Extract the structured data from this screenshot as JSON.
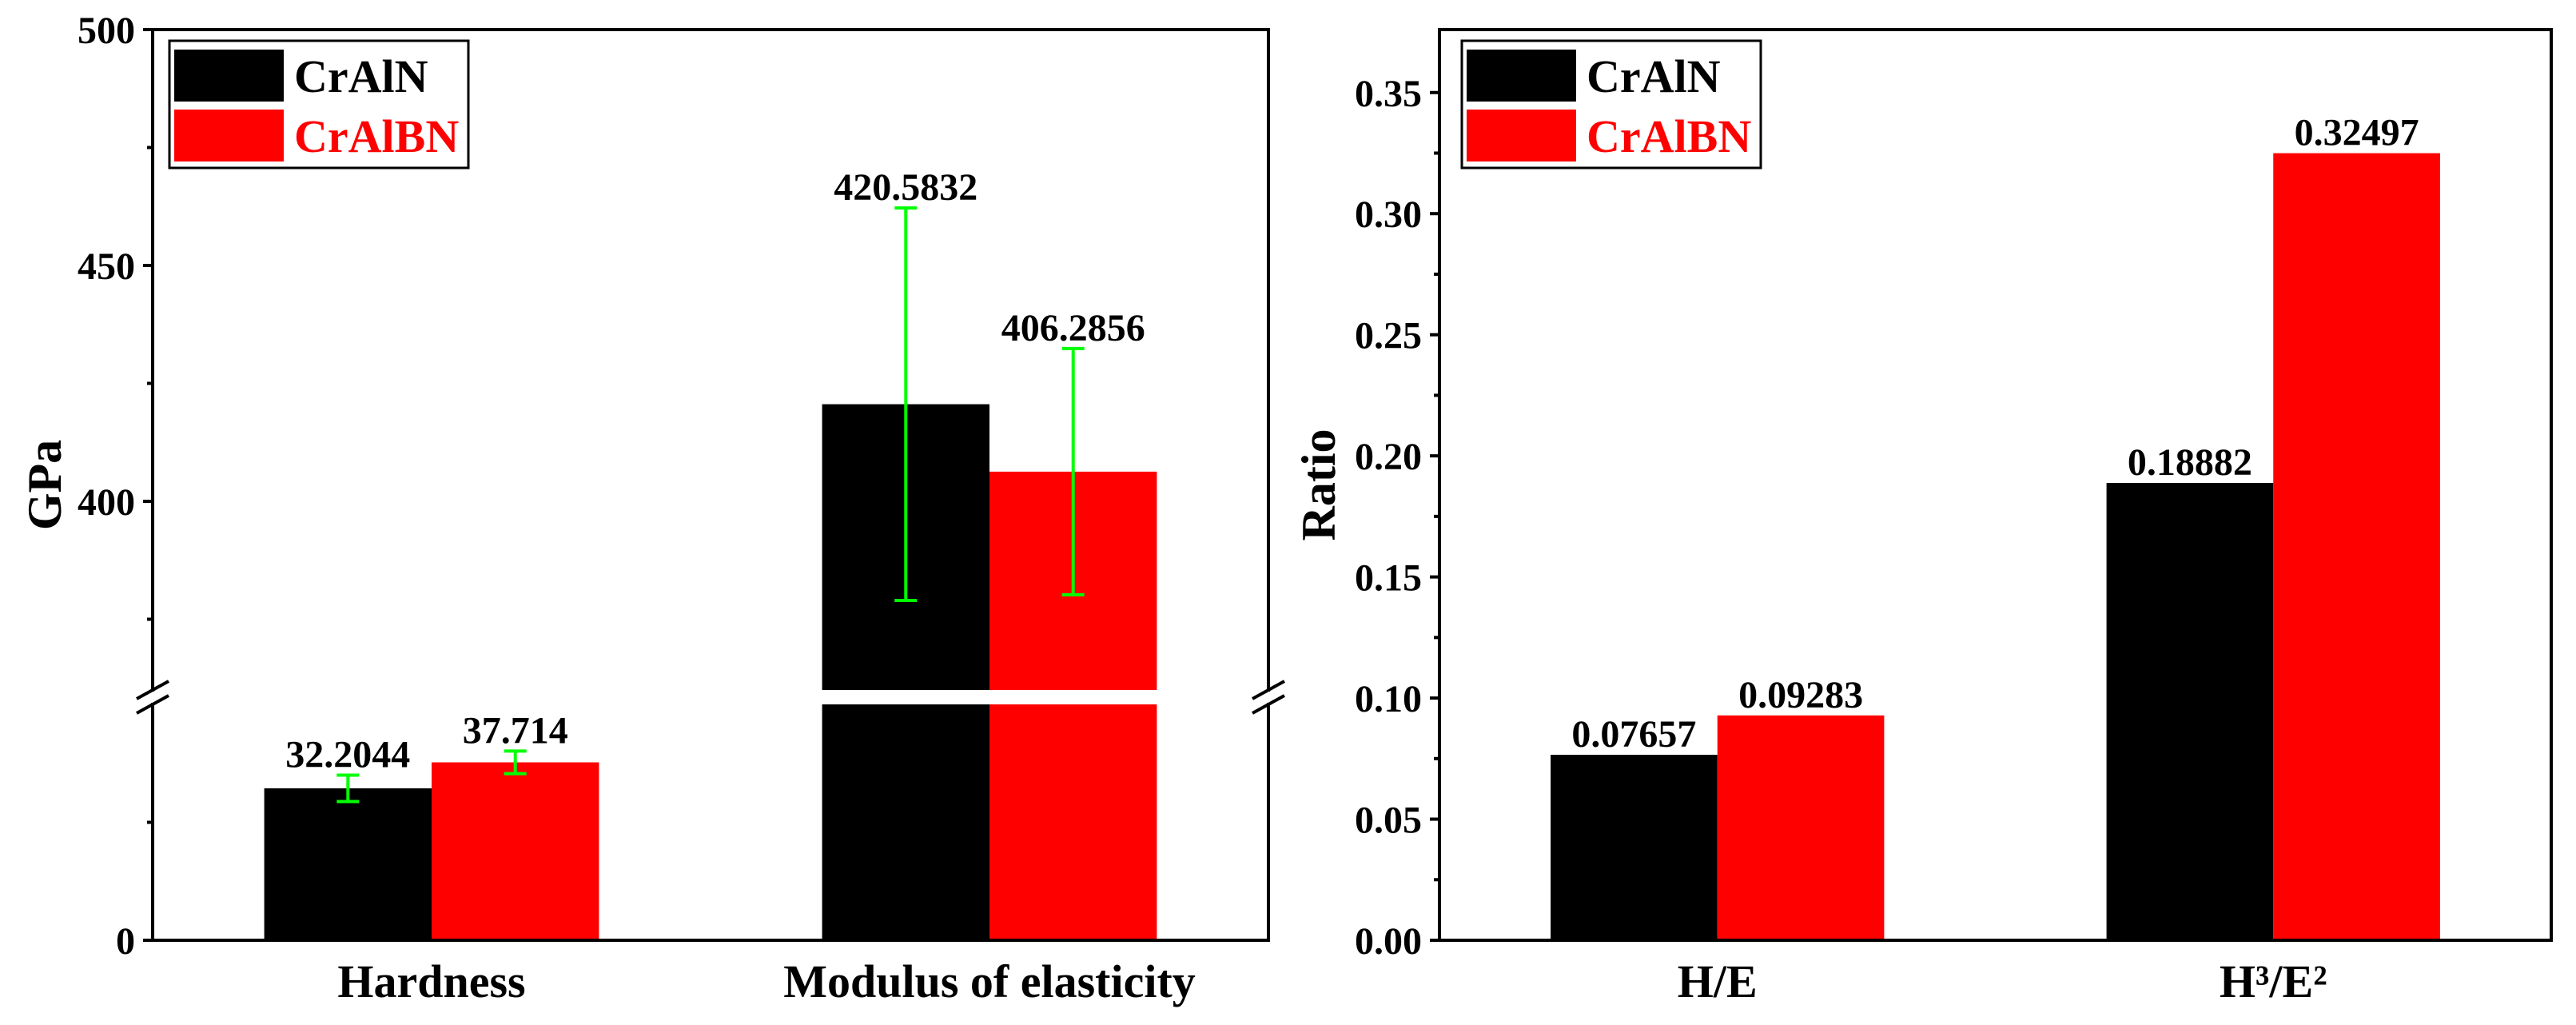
{
  "chart_data": [
    {
      "type": "bar",
      "categories": [
        "Hardness",
        "Modulus of elasticity"
      ],
      "series": [
        {
          "name": "CrAlN",
          "color": "#000000",
          "values": [
            32.2044,
            420.5832
          ],
          "errors": [
            2.8,
            41.6
          ],
          "labels": [
            "32.2044",
            "420.5832"
          ]
        },
        {
          "name": "CrAlBN",
          "color": "#ff0000",
          "values": [
            37.714,
            406.2856
          ],
          "errors": [
            2.4,
            26.1
          ],
          "labels": [
            "37.714",
            "406.2856"
          ]
        }
      ],
      "error_color": "#00ff00",
      "ylabel": "GPa",
      "y_segments": [
        [
          0,
          50
        ],
        [
          360,
          500
        ]
      ],
      "yticks": [
        0,
        400,
        450,
        500
      ],
      "yticklabels": [
        "0",
        "400",
        "450",
        "500"
      ],
      "yminor": [
        25,
        375,
        425,
        475
      ],
      "grid": false,
      "legend": "top-left"
    },
    {
      "type": "bar",
      "categories": [
        "H/E",
        "H³/E²"
      ],
      "series": [
        {
          "name": "CrAlN",
          "color": "#000000",
          "values": [
            0.07657,
            0.18882
          ],
          "labels": [
            "0.07657",
            "0.18882"
          ]
        },
        {
          "name": "CrAlBN",
          "color": "#ff0000",
          "values": [
            0.09283,
            0.32497
          ],
          "labels": [
            "0.09283",
            "0.32497"
          ]
        }
      ],
      "ylabel": "Ratio",
      "ylim": [
        0,
        0.376
      ],
      "yticks": [
        0,
        0.05,
        0.1,
        0.15,
        0.2,
        0.25,
        0.3,
        0.35
      ],
      "yticklabels": [
        "0.00",
        "0.05",
        "0.10",
        "0.15",
        "0.20",
        "0.25",
        "0.30",
        "0.35"
      ],
      "yminor": [
        0.025,
        0.075,
        0.125,
        0.175,
        0.225,
        0.275,
        0.325
      ],
      "grid": false,
      "legend": "top-left"
    }
  ]
}
